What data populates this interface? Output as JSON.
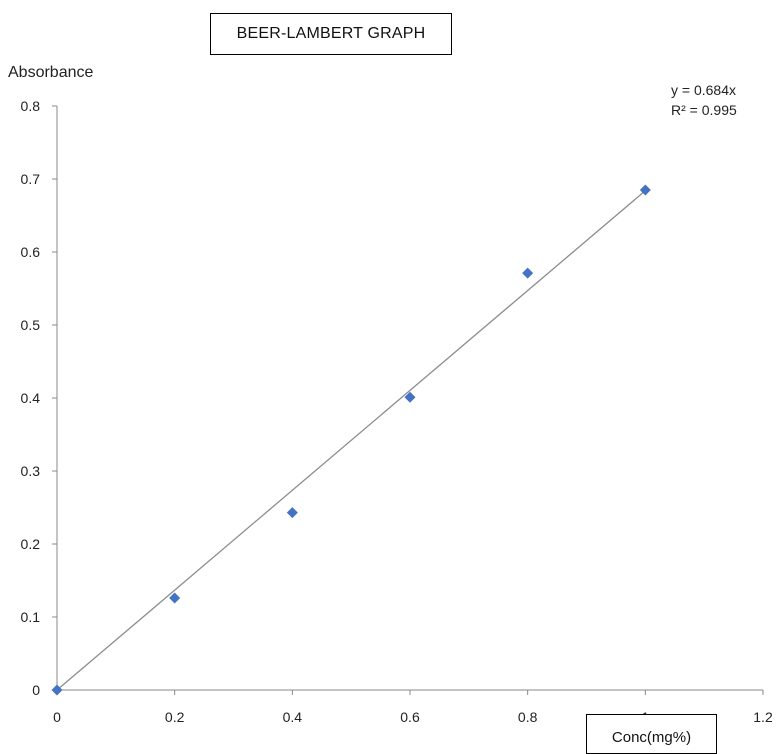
{
  "chart_data": {
    "type": "scatter",
    "title": "BEER-LAMBERT  GRAPH",
    "xlabel": "Conc(mg%)",
    "ylabel": "Absorbance",
    "xlim": [
      0,
      1.2
    ],
    "ylim": [
      0,
      0.8
    ],
    "x_ticks": [
      "0",
      "0.2",
      "0.4",
      "0.6",
      "0.8",
      "1",
      "1.2"
    ],
    "y_ticks": [
      "0",
      "0.1",
      "0.2",
      "0.3",
      "0.4",
      "0.5",
      "0.6",
      "0.7",
      "0.8"
    ],
    "grid": false,
    "series": [
      {
        "points": [
          {
            "x": 0,
            "y": 0
          },
          {
            "x": 0.2,
            "y": 0.126
          },
          {
            "x": 0.4,
            "y": 0.243
          },
          {
            "x": 0.6,
            "y": 0.401
          },
          {
            "x": 0.8,
            "y": 0.571
          },
          {
            "x": 1.0,
            "y": 0.685
          }
        ]
      }
    ],
    "trendline": {
      "type": "linear",
      "slope": 0.684,
      "intercept": 0,
      "x_range": [
        0,
        1.0
      ],
      "equation": "y = 0.684x",
      "r_squared": "R² = 0.995"
    },
    "colors": {
      "marker": "#4472c4",
      "trendline": "#8c8c8c",
      "axis": "#888888"
    }
  }
}
